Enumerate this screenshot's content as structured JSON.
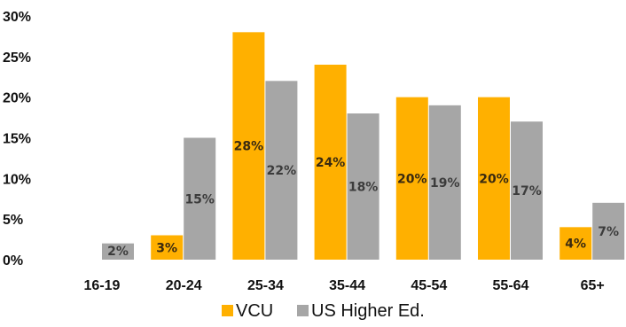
{
  "chart_data": {
    "type": "bar",
    "categories": [
      "16-19",
      "20-24",
      "25-34",
      "35-44",
      "45-54",
      "55-64",
      "65+"
    ],
    "series": [
      {
        "name": "VCU",
        "color": "#FFB000",
        "values": [
          null,
          3,
          28,
          24,
          20,
          20,
          4
        ],
        "labels": [
          "",
          "3%",
          "28%",
          "24%",
          "20%",
          "20%",
          "4%"
        ]
      },
      {
        "name": "US Higher Ed.",
        "color": "#A6A6A6",
        "values": [
          2,
          15,
          22,
          18,
          19,
          17,
          7
        ],
        "labels": [
          "2%",
          "15%",
          "22%",
          "18%",
          "19%",
          "17%",
          "7%"
        ]
      }
    ],
    "y_ticks": [
      "0%",
      "5%",
      "10%",
      "15%",
      "20%",
      "25%",
      "30%"
    ],
    "ylim": [
      0,
      30
    ],
    "grid": false,
    "legend_position": "bottom"
  }
}
